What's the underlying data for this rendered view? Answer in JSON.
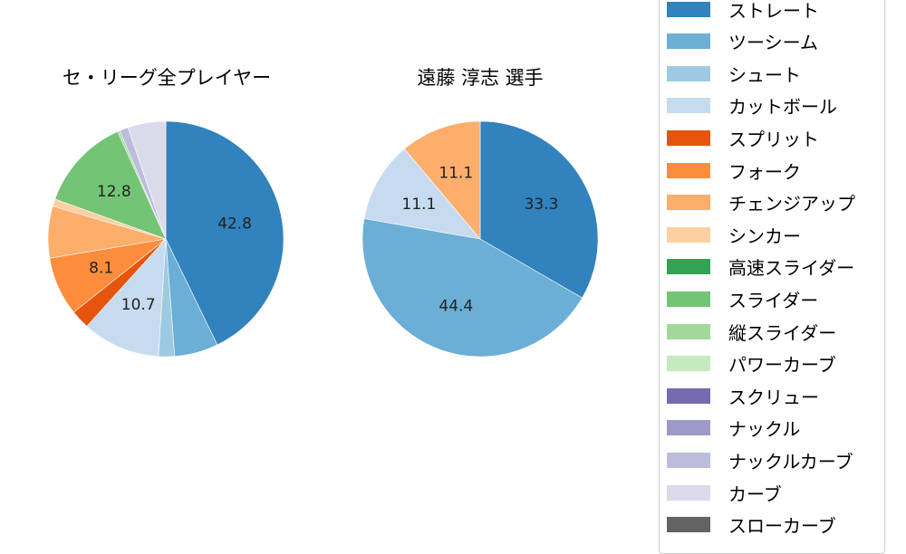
{
  "chart_data": [
    {
      "type": "pie",
      "title": "セ・リーグ全プレイヤー",
      "center": [
        183,
        264
      ],
      "radius": 130,
      "start_angle": 90,
      "direction": "clockwise",
      "slices": [
        {
          "label": "ストレート",
          "value": 42.8,
          "color": "#3182bd",
          "show_label": true
        },
        {
          "label": "ツーシーム",
          "value": 6.0,
          "color": "#6baed6",
          "show_label": false
        },
        {
          "label": "シュート",
          "value": 2.2,
          "color": "#9ecae1",
          "show_label": false
        },
        {
          "label": "カットボール",
          "value": 10.7,
          "color": "#c6dbef",
          "show_label": true
        },
        {
          "label": "スプリット",
          "value": 2.6,
          "color": "#e6550d",
          "show_label": false
        },
        {
          "label": "フォーク",
          "value": 8.1,
          "color": "#fd8d3c",
          "show_label": true
        },
        {
          "label": "チェンジアップ",
          "value": 7.1,
          "color": "#fdae6b",
          "show_label": false
        },
        {
          "label": "シンカー",
          "value": 1.0,
          "color": "#fdd0a2",
          "show_label": false
        },
        {
          "label": "スライダー",
          "value": 12.8,
          "color": "#74c476",
          "show_label": true
        },
        {
          "label": "縦スライダー",
          "value": 0.3,
          "color": "#a1d99b",
          "show_label": false
        },
        {
          "label": "ナックルカーブ",
          "value": 1.2,
          "color": "#bcbddc",
          "show_label": false
        },
        {
          "label": "カーブ",
          "value": 5.2,
          "color": "#dadaeb",
          "show_label": false
        }
      ]
    },
    {
      "type": "pie",
      "title": "遠藤 淳志  選手",
      "center": [
        530,
        264
      ],
      "radius": 130,
      "start_angle": 90,
      "direction": "clockwise",
      "slices": [
        {
          "label": "ストレート",
          "value": 33.3,
          "color": "#3182bd",
          "show_label": true
        },
        {
          "label": "ツーシーム",
          "value": 44.4,
          "color": "#6baed6",
          "show_label": true
        },
        {
          "label": "カットボール",
          "value": 11.1,
          "color": "#c6dbef",
          "show_label": true
        },
        {
          "label": "チェンジアップ",
          "value": 11.1,
          "color": "#fdae6b",
          "show_label": true
        }
      ]
    }
  ],
  "legend": {
    "items": [
      {
        "label": "ストレート",
        "color": "#3182bd"
      },
      {
        "label": "ツーシーム",
        "color": "#6baed6"
      },
      {
        "label": "シュート",
        "color": "#9ecae1"
      },
      {
        "label": "カットボール",
        "color": "#c6dbef"
      },
      {
        "label": "スプリット",
        "color": "#e6550d"
      },
      {
        "label": "フォーク",
        "color": "#fd8d3c"
      },
      {
        "label": "チェンジアップ",
        "color": "#fdae6b"
      },
      {
        "label": "シンカー",
        "color": "#fdd0a2"
      },
      {
        "label": "高速スライダー",
        "color": "#31a354"
      },
      {
        "label": "スライダー",
        "color": "#74c476"
      },
      {
        "label": "縦スライダー",
        "color": "#a1d99b"
      },
      {
        "label": "パワーカーブ",
        "color": "#c7e9c0"
      },
      {
        "label": "スクリュー",
        "color": "#756bb1"
      },
      {
        "label": "ナックル",
        "color": "#9e9ac8"
      },
      {
        "label": "ナックルカーブ",
        "color": "#bcbddc"
      },
      {
        "label": "カーブ",
        "color": "#dadaeb"
      },
      {
        "label": "スローカーブ",
        "color": "#636363"
      }
    ]
  }
}
